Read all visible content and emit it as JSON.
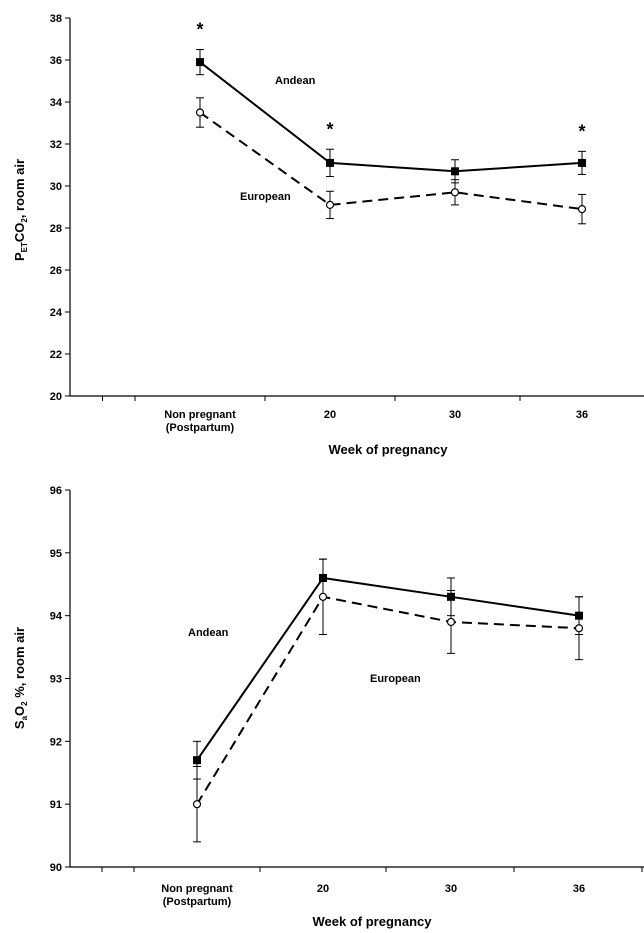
{
  "chart_data": [
    {
      "type": "line",
      "categories": [
        "Non pregnant (Postpartum)",
        "20",
        "30",
        "36"
      ],
      "category_lines": [
        [
          "Non pregnant",
          "(Postpartum)"
        ],
        [
          "20"
        ],
        [
          "30"
        ],
        [
          "36"
        ]
      ],
      "xlabel": "Week of pregnancy",
      "ylabel_parts": {
        "main": "P",
        "sub1": "ET",
        "mid": "CO",
        "sub2": "2",
        "end": ", room air"
      },
      "ylim": [
        20,
        38
      ],
      "yticks": [
        20,
        22,
        24,
        26,
        28,
        30,
        32,
        34,
        36,
        38
      ],
      "series": [
        {
          "name": "Andean",
          "values": [
            35.9,
            31.1,
            30.7,
            31.1
          ],
          "err": [
            0.6,
            0.65,
            0.55,
            0.55
          ],
          "style": "solid",
          "marker": "filled-square"
        },
        {
          "name": "European",
          "values": [
            33.5,
            29.1,
            29.7,
            28.9
          ],
          "err": [
            0.7,
            0.65,
            0.6,
            0.7
          ],
          "style": "dashed",
          "marker": "open-circle"
        }
      ],
      "significance": [
        {
          "category_index": 0,
          "label": "*"
        },
        {
          "category_index": 1,
          "label": "*"
        },
        {
          "category_index": 3,
          "label": "*"
        }
      ],
      "grid": false
    },
    {
      "type": "line",
      "categories": [
        "Non pregnant (Postpartum)",
        "20",
        "30",
        "36"
      ],
      "category_lines": [
        [
          "Non pregnant",
          "(Postpartum)"
        ],
        [
          "20"
        ],
        [
          "30"
        ],
        [
          "36"
        ]
      ],
      "xlabel": "Week of pregnancy",
      "ylabel_parts": {
        "main": "S",
        "sub1": "a",
        "mid": "O",
        "sub2": "2",
        "end": " %, room air"
      },
      "ylim": [
        90,
        96
      ],
      "yticks": [
        90,
        91,
        92,
        93,
        94,
        95,
        96
      ],
      "series": [
        {
          "name": "Andean",
          "values": [
            91.7,
            94.6,
            94.3,
            94.0
          ],
          "err": [
            0.3,
            0.3,
            0.3,
            0.3
          ],
          "style": "solid",
          "marker": "filled-square"
        },
        {
          "name": "European",
          "values": [
            91.0,
            94.3,
            93.9,
            93.8
          ],
          "err": [
            0.6,
            0.6,
            0.5,
            0.5
          ],
          "style": "dashed",
          "marker": "open-circle"
        }
      ],
      "grid": false
    }
  ]
}
